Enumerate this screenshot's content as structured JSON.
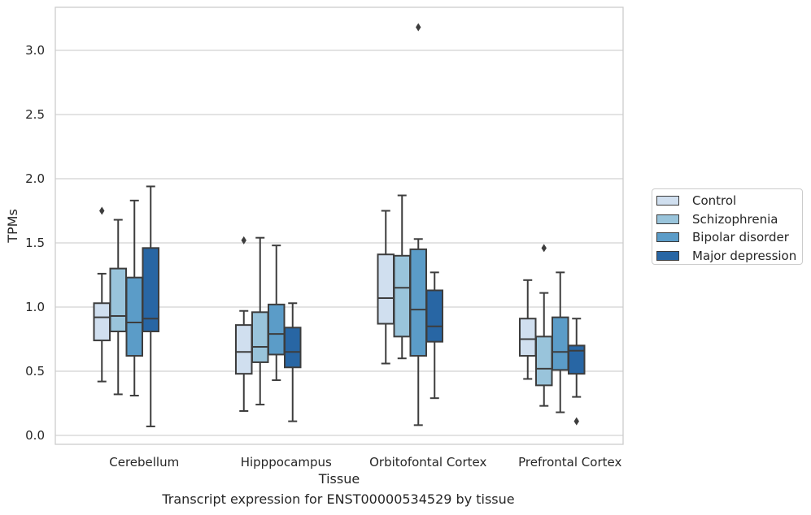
{
  "chart_data": {
    "type": "box",
    "title": "",
    "xlabel": "Tissue",
    "ylabel": "TPMs",
    "ylim": [
      -0.07,
      3.34
    ],
    "yticks": [
      "0.0",
      "0.5",
      "1.0",
      "1.5",
      "2.0",
      "2.5",
      "3.0"
    ],
    "categories": [
      "Cerebellum",
      "Hipppocampus",
      "Orbitofontal Cortex",
      "Prefrontal Cortex"
    ],
    "grid": true,
    "legend_position": "right",
    "series": [
      {
        "name": "Control",
        "color": "#d0dfef",
        "boxes": [
          {
            "whislo": 0.42,
            "q1": 0.74,
            "med": 0.92,
            "q3": 1.03,
            "whishi": 1.26,
            "fliers": [
              1.75
            ]
          },
          {
            "whislo": 0.19,
            "q1": 0.48,
            "med": 0.65,
            "q3": 0.86,
            "whishi": 0.97,
            "fliers": [
              1.52
            ]
          },
          {
            "whislo": 0.56,
            "q1": 0.87,
            "med": 1.07,
            "q3": 1.41,
            "whishi": 1.75,
            "fliers": []
          },
          {
            "whislo": 0.44,
            "q1": 0.62,
            "med": 0.75,
            "q3": 0.91,
            "whishi": 1.21,
            "fliers": []
          }
        ]
      },
      {
        "name": "Schizophrenia",
        "color": "#99c4db",
        "boxes": [
          {
            "whislo": 0.32,
            "q1": 0.81,
            "med": 0.93,
            "q3": 1.3,
            "whishi": 1.68,
            "fliers": []
          },
          {
            "whislo": 0.24,
            "q1": 0.57,
            "med": 0.69,
            "q3": 0.96,
            "whishi": 1.54,
            "fliers": []
          },
          {
            "whislo": 0.6,
            "q1": 0.77,
            "med": 1.15,
            "q3": 1.4,
            "whishi": 1.87,
            "fliers": []
          },
          {
            "whislo": 0.23,
            "q1": 0.39,
            "med": 0.52,
            "q3": 0.77,
            "whishi": 1.11,
            "fliers": [
              1.46
            ]
          }
        ]
      },
      {
        "name": "Bipolar disorder",
        "color": "#5b9cc8",
        "boxes": [
          {
            "whislo": 0.31,
            "q1": 0.62,
            "med": 0.88,
            "q3": 1.23,
            "whishi": 1.83,
            "fliers": []
          },
          {
            "whislo": 0.43,
            "q1": 0.63,
            "med": 0.79,
            "q3": 1.02,
            "whishi": 1.48,
            "fliers": []
          },
          {
            "whislo": 0.08,
            "q1": 0.62,
            "med": 0.98,
            "q3": 1.45,
            "whishi": 1.53,
            "fliers": [
              3.18
            ]
          },
          {
            "whislo": 0.18,
            "q1": 0.51,
            "med": 0.65,
            "q3": 0.92,
            "whishi": 1.27,
            "fliers": []
          }
        ]
      },
      {
        "name": "Major depression",
        "color": "#2866a4",
        "boxes": [
          {
            "whislo": 0.07,
            "q1": 0.81,
            "med": 0.91,
            "q3": 1.46,
            "whishi": 1.94,
            "fliers": []
          },
          {
            "whislo": 0.11,
            "q1": 0.53,
            "med": 0.65,
            "q3": 0.84,
            "whishi": 1.03,
            "fliers": []
          },
          {
            "whislo": 0.29,
            "q1": 0.73,
            "med": 0.85,
            "q3": 1.13,
            "whishi": 1.27,
            "fliers": []
          },
          {
            "whislo": 0.3,
            "q1": 0.48,
            "med": 0.66,
            "q3": 0.7,
            "whishi": 0.91,
            "fliers": [
              0.11
            ]
          }
        ]
      }
    ]
  },
  "caption": "Transcript expression for ENST00000534529 by tissue"
}
